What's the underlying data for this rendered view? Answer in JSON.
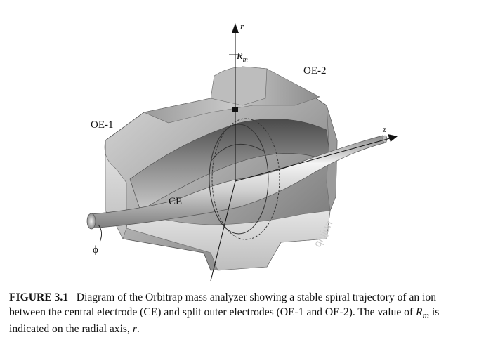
{
  "figure": {
    "labels": {
      "r_axis": "r",
      "rm": "R",
      "rm_sub": "m",
      "oe2": "OE-2",
      "oe1": "OE-1",
      "ce": "CE",
      "z_axis": "z",
      "phi": "ϕ"
    },
    "watermark": "qiujun"
  },
  "caption": {
    "figure_number": "FIGURE 3.1",
    "text_part1": "Diagram of the Orbitrap mass analyzer showing a stable spiral trajectory of an ion between the central electrode (CE) and split outer electrodes (OE-1 and OE-2). The value of ",
    "rm_symbol": "R",
    "rm_sub": "m",
    "text_part2": " is indicated on the radial axis, ",
    "r_symbol": "r",
    "text_end": "."
  }
}
